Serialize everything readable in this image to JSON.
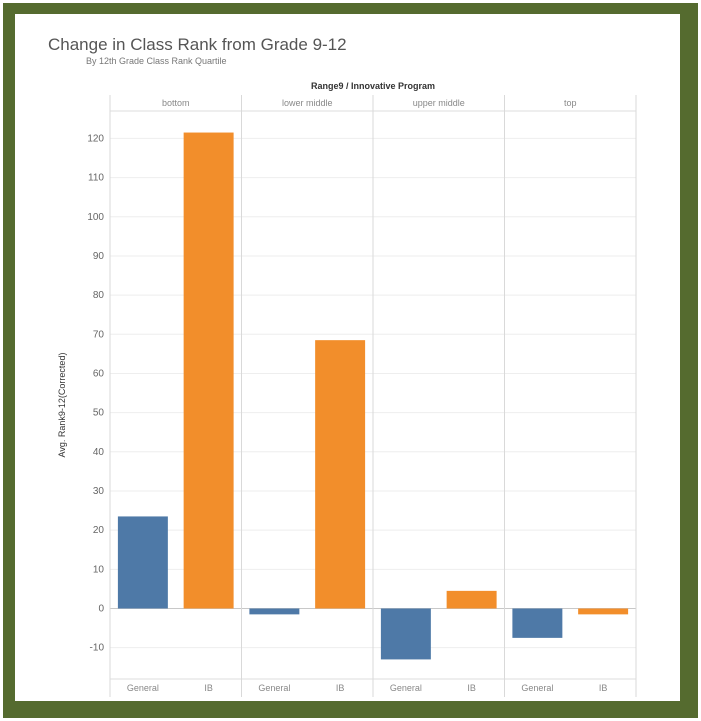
{
  "chart_data": {
    "type": "bar",
    "title": "Change in Class Rank from Grade 9-12",
    "subtitle": "By 12th Grade Class Rank Quartile",
    "header": "Range9 / Innovative Program",
    "ylabel": "Avg. Rank9-12(Corrected)",
    "ylim": [
      -18,
      127
    ],
    "yticks": [
      -10,
      0,
      10,
      20,
      30,
      40,
      50,
      60,
      70,
      80,
      90,
      100,
      110,
      120
    ],
    "grid": true,
    "panels": [
      {
        "name": "bottom",
        "bars": [
          {
            "category": "General",
            "value": 23.5
          },
          {
            "category": "IB",
            "value": 121.5
          }
        ]
      },
      {
        "name": "lower middle",
        "bars": [
          {
            "category": "General",
            "value": -1.5
          },
          {
            "category": "IB",
            "value": 68.5
          }
        ]
      },
      {
        "name": "upper middle",
        "bars": [
          {
            "category": "General",
            "value": -13
          },
          {
            "category": "IB",
            "value": 4.5
          }
        ]
      },
      {
        "name": "top",
        "bars": [
          {
            "category": "General",
            "value": -7.5
          },
          {
            "category": "IB",
            "value": -1.5
          }
        ]
      }
    ],
    "colors": {
      "General": "#4e79a7",
      "IB": "#f28e2b"
    }
  }
}
